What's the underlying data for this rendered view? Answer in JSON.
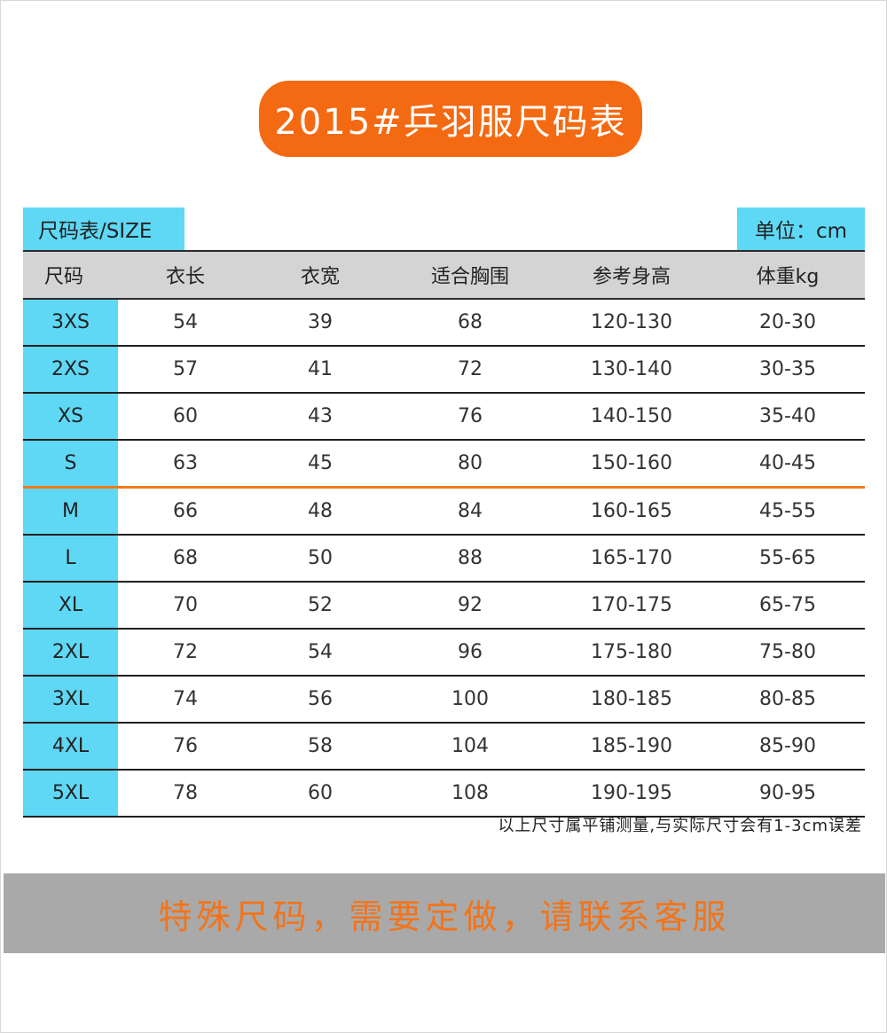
{
  "title": "2015#乒羽服尺码表",
  "table_label": "尺码表/SIZE",
  "unit_label": "单位：cm",
  "headers": [
    "尺码",
    "衣长",
    "衣宽",
    "适合胸围",
    "参考身高",
    "体重kg"
  ],
  "rows": [
    {
      "size": "3XS",
      "length": "54",
      "width": "39",
      "chest": "68",
      "height": "120-130",
      "weight": "20-30"
    },
    {
      "size": "2XS",
      "length": "57",
      "width": "41",
      "chest": "72",
      "height": "130-140",
      "weight": "30-35"
    },
    {
      "size": "XS",
      "length": "60",
      "width": "43",
      "chest": "76",
      "height": "140-150",
      "weight": "35-40"
    },
    {
      "size": "S",
      "length": "63",
      "width": "45",
      "chest": "80",
      "height": "150-160",
      "weight": "40-45"
    },
    {
      "size": "M",
      "length": "66",
      "width": "48",
      "chest": "84",
      "height": "160-165",
      "weight": "45-55"
    },
    {
      "size": "L",
      "length": "68",
      "width": "50",
      "chest": "88",
      "height": "165-170",
      "weight": "55-65"
    },
    {
      "size": "XL",
      "length": "70",
      "width": "52",
      "chest": "92",
      "height": "170-175",
      "weight": "65-75"
    },
    {
      "size": "2XL",
      "length": "72",
      "width": "54",
      "chest": "96",
      "height": "175-180",
      "weight": "75-80"
    },
    {
      "size": "3XL",
      "length": "74",
      "width": "56",
      "chest": "100",
      "height": "180-185",
      "weight": "80-85"
    },
    {
      "size": "4XL",
      "length": "76",
      "width": "58",
      "chest": "104",
      "height": "185-190",
      "weight": "85-90"
    },
    {
      "size": "5XL",
      "length": "78",
      "width": "60",
      "chest": "108",
      "height": "190-195",
      "weight": "90-95"
    }
  ],
  "note": "以上尺寸属平铺测量,与实际尺寸会有1-3cm误差",
  "footer": "特殊尺码，需要定做，请联系客服",
  "colors": {
    "accent_orange": "#f46a12",
    "cyan": "#5fd8f5",
    "header_gray": "#d4d4d4",
    "footer_gray": "#a9a9a9"
  }
}
